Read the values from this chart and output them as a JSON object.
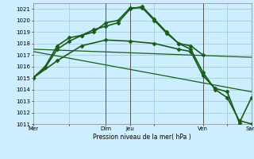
{
  "background_color": "#cceeff",
  "grid_color": "#99cccc",
  "line_color": "#1a5c1a",
  "xlabel": "Pression niveau de la mer( hPa )",
  "ylim": [
    1011,
    1021.5
  ],
  "yticks": [
    1011,
    1012,
    1013,
    1014,
    1015,
    1016,
    1017,
    1018,
    1019,
    1020,
    1021
  ],
  "xtick_labels": [
    "Mer",
    "",
    "Dim",
    "Jeu",
    "",
    "Ven",
    "",
    "Sam"
  ],
  "xtick_positions": [
    0,
    3,
    6,
    8,
    10,
    14,
    16,
    18
  ],
  "xlim": [
    0,
    18
  ],
  "vlines_x": [
    6,
    8,
    14,
    18
  ],
  "vline_color": "#555555",
  "vline_lw": 0.7,
  "lines": [
    {
      "x": [
        0,
        1,
        2,
        3,
        4,
        5,
        6,
        7,
        8,
        9,
        10,
        11,
        12,
        13,
        14
      ],
      "y": [
        1015.0,
        1015.9,
        1017.5,
        1018.2,
        1018.7,
        1019.0,
        1019.8,
        1020.0,
        1021.1,
        1021.1,
        1020.0,
        1018.9,
        1018.0,
        1017.8,
        1017.0
      ],
      "marker": "D",
      "markersize": 2.5,
      "linewidth": 1.2
    },
    {
      "x": [
        0,
        1,
        2,
        3,
        4,
        5,
        6,
        7,
        8,
        9,
        10,
        11,
        12,
        13,
        14,
        15,
        16,
        17,
        18
      ],
      "y": [
        1015.0,
        1016.0,
        1017.8,
        1018.5,
        1018.7,
        1019.2,
        1019.5,
        1019.8,
        1021.0,
        1021.2,
        1020.1,
        1019.0,
        1018.0,
        1017.5,
        1015.5,
        1014.0,
        1013.3,
        1011.3,
        1011.0
      ],
      "marker": "D",
      "markersize": 2.5,
      "linewidth": 1.2
    },
    {
      "x": [
        0,
        18
      ],
      "y": [
        1017.5,
        1016.8
      ],
      "marker": null,
      "markersize": 0,
      "linewidth": 0.9
    },
    {
      "x": [
        0,
        18
      ],
      "y": [
        1017.3,
        1013.8
      ],
      "marker": null,
      "markersize": 0,
      "linewidth": 0.9
    },
    {
      "x": [
        0,
        2,
        4,
        6,
        8,
        10,
        12,
        13,
        14,
        15,
        16,
        17,
        18
      ],
      "y": [
        1015.0,
        1016.5,
        1017.8,
        1018.3,
        1018.2,
        1018.0,
        1017.5,
        1017.3,
        1015.2,
        1014.1,
        1013.8,
        1011.1,
        1013.3
      ],
      "marker": "D",
      "markersize": 2.5,
      "linewidth": 1.2
    }
  ]
}
